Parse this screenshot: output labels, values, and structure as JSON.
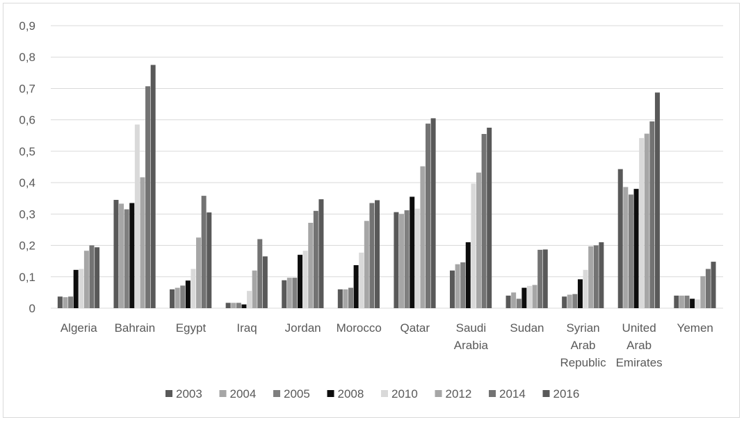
{
  "chart_data": {
    "type": "bar",
    "title": "",
    "xlabel": "",
    "ylabel": "",
    "ylim": [
      0,
      0.9
    ],
    "yticks": [
      "0",
      "0,1",
      "0,2",
      "0,3",
      "0,4",
      "0,5",
      "0,6",
      "0,7",
      "0,8",
      "0,9"
    ],
    "grid": true,
    "legend_position": "bottom",
    "categories": [
      [
        "Algeria"
      ],
      [
        "Bahrain"
      ],
      [
        "Egypt"
      ],
      [
        "Iraq"
      ],
      [
        "Jordan"
      ],
      [
        "Morocco"
      ],
      [
        "Qatar"
      ],
      [
        "Saudi",
        "Arabia"
      ],
      [
        "Sudan"
      ],
      [
        "Syrian",
        "Arab",
        "Republic"
      ],
      [
        "United",
        "Arab",
        "Emirates"
      ],
      [
        "Yemen"
      ]
    ],
    "series": [
      {
        "name": "2003",
        "color": "#595959",
        "values": [
          0.037,
          0.345,
          0.06,
          0.017,
          0.089,
          0.06,
          0.306,
          0.12,
          0.04,
          0.037,
          0.443,
          0.04
        ]
      },
      {
        "name": "2004",
        "color": "#a6a6a6",
        "values": [
          0.035,
          0.333,
          0.065,
          0.017,
          0.097,
          0.06,
          0.3,
          0.14,
          0.05,
          0.043,
          0.386,
          0.04
        ]
      },
      {
        "name": "2005",
        "color": "#7f7f7f",
        "values": [
          0.037,
          0.315,
          0.072,
          0.017,
          0.097,
          0.065,
          0.312,
          0.146,
          0.03,
          0.045,
          0.362,
          0.04
        ]
      },
      {
        "name": "2008",
        "color": "#0d0d0d",
        "values": [
          0.122,
          0.335,
          0.088,
          0.012,
          0.17,
          0.137,
          0.355,
          0.21,
          0.065,
          0.092,
          0.38,
          0.03
        ]
      },
      {
        "name": "2010",
        "color": "#d9d9d9",
        "values": [
          0.125,
          0.585,
          0.125,
          0.055,
          0.183,
          0.177,
          0.317,
          0.397,
          0.071,
          0.122,
          0.542,
          0.028
        ]
      },
      {
        "name": "2012",
        "color": "#a6a6a6",
        "values": [
          0.183,
          0.417,
          0.225,
          0.12,
          0.272,
          0.278,
          0.452,
          0.432,
          0.074,
          0.197,
          0.556,
          0.102
        ]
      },
      {
        "name": "2014",
        "color": "#737373",
        "values": [
          0.2,
          0.707,
          0.358,
          0.22,
          0.31,
          0.335,
          0.588,
          0.555,
          0.186,
          0.2,
          0.595,
          0.125
        ]
      },
      {
        "name": "2016",
        "color": "#595959",
        "values": [
          0.194,
          0.775,
          0.305,
          0.165,
          0.347,
          0.344,
          0.605,
          0.575,
          0.187,
          0.21,
          0.687,
          0.148
        ]
      }
    ]
  }
}
